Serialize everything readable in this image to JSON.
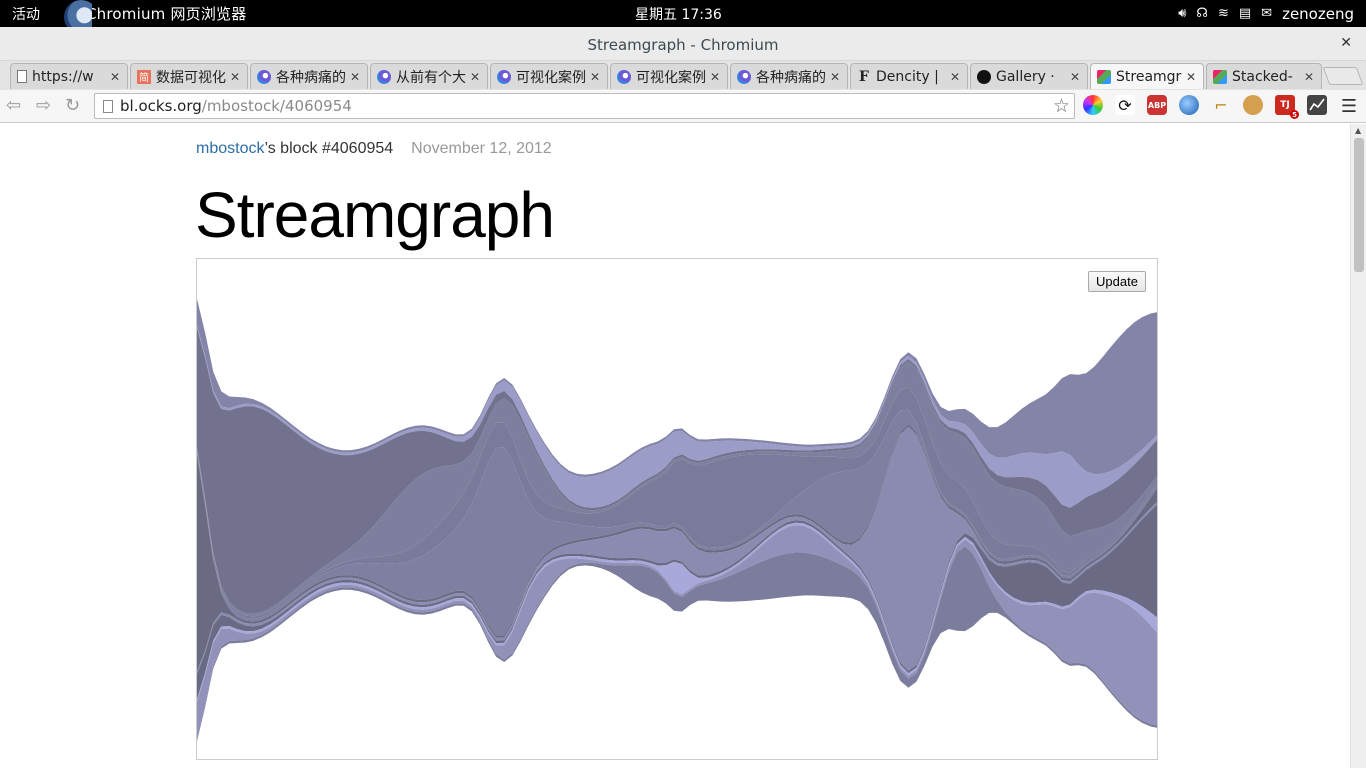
{
  "topbar": {
    "activities": "活动",
    "app_name": "Chromium 网页浏览器",
    "clock": "星期五 17:36",
    "user": "zenozeng"
  },
  "window": {
    "title": "Streamgraph - Chromium"
  },
  "tabs": [
    {
      "label": "https://w",
      "icon": "page-icon"
    },
    {
      "label": "数据可视化",
      "icon": "jian-icon"
    },
    {
      "label": "各种病痛的",
      "icon": "site-icon"
    },
    {
      "label": "从前有个大",
      "icon": "site-icon"
    },
    {
      "label": "可视化案例",
      "icon": "site-icon"
    },
    {
      "label": "可视化案例",
      "icon": "site-icon"
    },
    {
      "label": "各种病痛的",
      "icon": "site-icon"
    },
    {
      "label": "Dencity |",
      "icon": "f-icon"
    },
    {
      "label": "Gallery · ",
      "icon": "github-icon"
    },
    {
      "label": "Streamgr",
      "icon": "cubes-icon",
      "active": true
    },
    {
      "label": "Stacked-",
      "icon": "cubes-icon"
    }
  ],
  "toolbar": {
    "url_host": "bl.ocks.org",
    "url_path": "/mbostock/4060954"
  },
  "page": {
    "author": "mbostock",
    "block_text": "’s block #4060954",
    "date": "November 12, 2012",
    "title": "Streamgraph",
    "update_label": "Update"
  },
  "colors": {
    "stream_light": "#aaaadd",
    "stream_dark": "#555566"
  }
}
